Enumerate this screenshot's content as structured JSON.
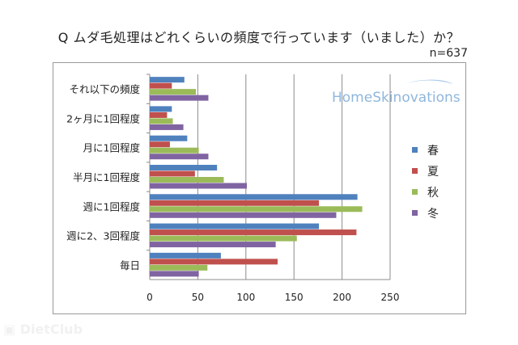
{
  "chart_data": {
    "type": "bar",
    "orientation": "horizontal",
    "title": "Q ムダ毛処理はどれくらいの頻度で行っています（いました）か？",
    "sample_size": "n=637",
    "categories": [
      "それ以下の頻度",
      "2ヶ月に1回程度",
      "月に1回程度",
      "半月に1回程度",
      "週に1回程度",
      "週に2、3回程度",
      "毎日"
    ],
    "series": [
      {
        "name": "春",
        "color": "#4f81bd",
        "values": [
          36,
          23,
          39,
          70,
          216,
          176,
          74
        ]
      },
      {
        "name": "夏",
        "color": "#c0504d",
        "values": [
          23,
          18,
          21,
          47,
          176,
          215,
          133
        ]
      },
      {
        "name": "秋",
        "color": "#9bbb59",
        "values": [
          48,
          24,
          51,
          77,
          221,
          153,
          60
        ]
      },
      {
        "name": "冬",
        "color": "#8064a2",
        "values": [
          61,
          35,
          61,
          101,
          194,
          131,
          51
        ]
      }
    ],
    "xlim": [
      0,
      250
    ],
    "xticks": [
      "0",
      "50",
      "100",
      "150",
      "200",
      "250"
    ],
    "grid": true,
    "legend_position": "right",
    "logo": "HomeSkinovations"
  },
  "watermark": "DietClub"
}
